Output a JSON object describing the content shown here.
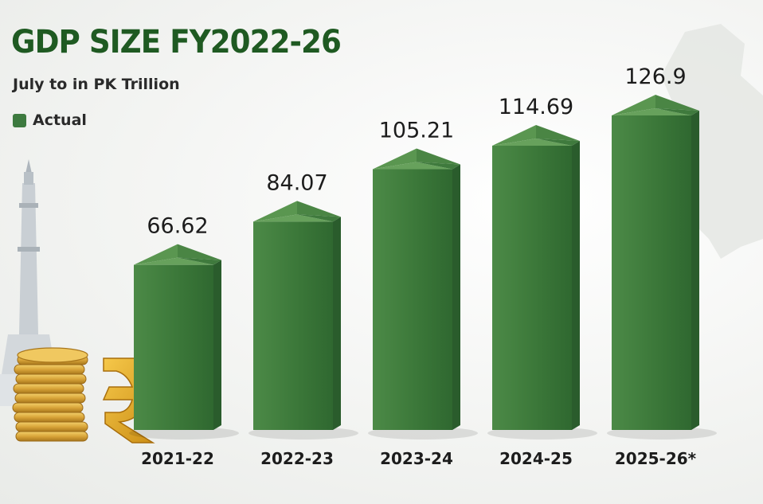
{
  "header": {
    "title": "GDP SIZE FY2022-26",
    "subtitle": "July to in PK Trillion",
    "legend_label": "Actual"
  },
  "colors": {
    "bar_front": "#3c7a3c",
    "bar_side": "#2a5c2c",
    "bar_top": "#67a15c",
    "title": "#1f5a22",
    "coin": "#d9a53a",
    "rupee": "#e2a51f"
  },
  "icons": [
    "minar-tower-icon",
    "gold-coins-icon",
    "rupee-symbol-icon",
    "map-watermark-icon"
  ],
  "chart_data": {
    "type": "bar",
    "title": "GDP SIZE FY2022-26",
    "subtitle": "July to in PK Trillion",
    "categories": [
      "2021-22",
      "2022-23",
      "2023-24",
      "2024-25",
      "2025-26*"
    ],
    "series": [
      {
        "name": "Actual",
        "values": [
          66.62,
          84.07,
          105.21,
          114.69,
          126.9
        ]
      }
    ],
    "value_labels": [
      "66.62",
      "84.07",
      "105.21",
      "114.69",
      "126.9"
    ],
    "xlabel": "",
    "ylabel": "",
    "grid": false,
    "legend_position": "top-left"
  }
}
